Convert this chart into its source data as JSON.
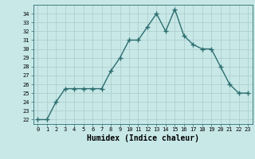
{
  "x": [
    0,
    1,
    2,
    3,
    4,
    5,
    6,
    7,
    8,
    9,
    10,
    11,
    12,
    13,
    14,
    15,
    16,
    17,
    18,
    19,
    20,
    21,
    22,
    23
  ],
  "y": [
    22,
    22,
    24,
    25.5,
    25.5,
    25.5,
    25.5,
    25.5,
    27.5,
    29,
    31,
    31,
    32.5,
    34,
    32,
    34.5,
    31.5,
    30.5,
    30,
    30,
    28,
    26,
    25,
    25
  ],
  "line_color": "#2d6e6e",
  "marker": "+",
  "marker_size": 4,
  "line_width": 1.0,
  "bg_color": "#c8e8e8",
  "grid_color": "#b0cece",
  "xlabel": "Humidex (Indice chaleur)",
  "xlabel_fontsize": 7,
  "tick_fontsize": 5,
  "ylabel_ticks": [
    22,
    23,
    24,
    25,
    26,
    27,
    28,
    29,
    30,
    31,
    32,
    33,
    34
  ],
  "xlim": [
    -0.5,
    23.5
  ],
  "ylim": [
    21.5,
    35.0
  ]
}
